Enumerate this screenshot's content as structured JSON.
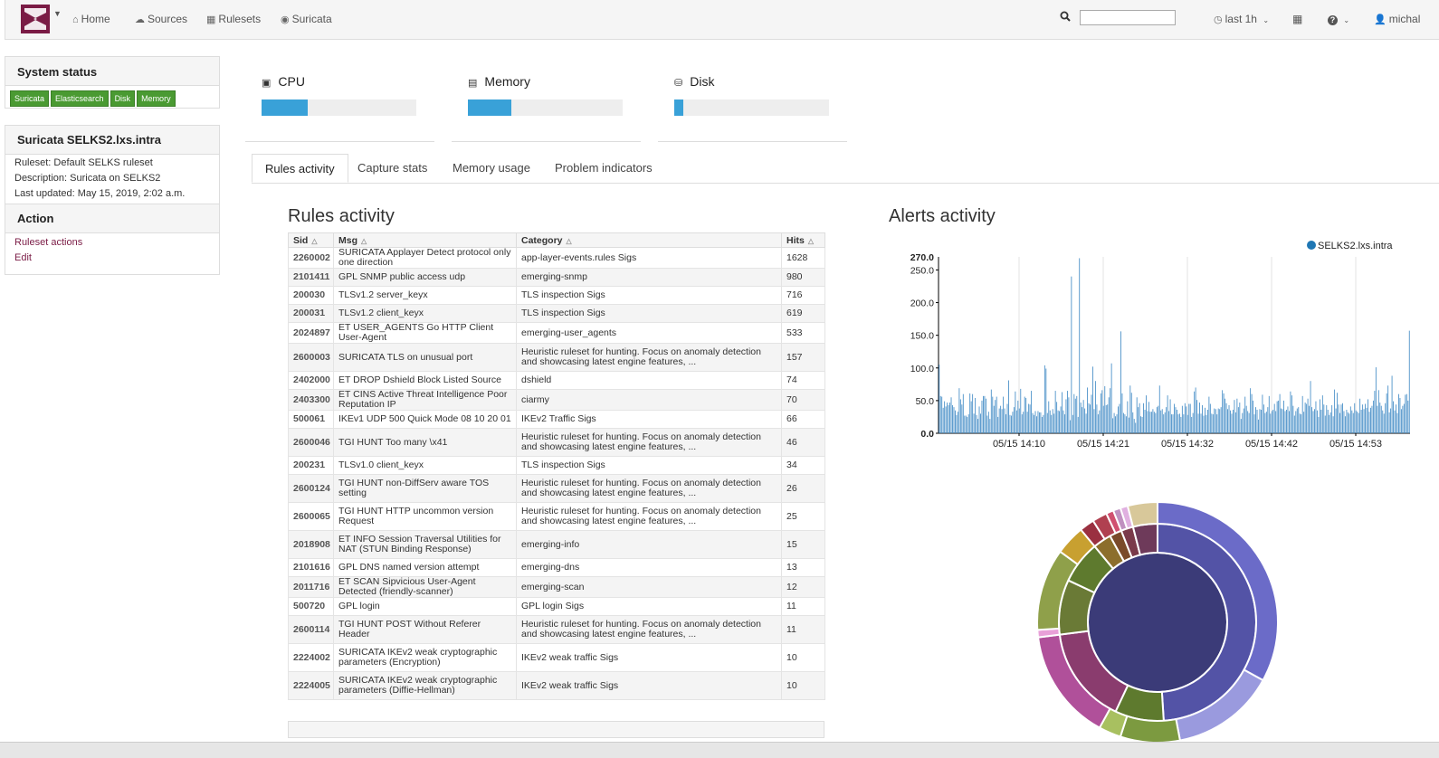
{
  "nav": {
    "home": "Home",
    "sources": "Sources",
    "rulesets": "Rulesets",
    "suricata": "Suricata",
    "time_range": "last 1h",
    "user": "michal"
  },
  "system_status": {
    "title": "System status",
    "badges": [
      "Suricata",
      "Elasticsearch",
      "Disk",
      "Memory"
    ],
    "badge_color": "#4a9a32"
  },
  "probe": {
    "title": "Suricata SELKS2.lxs.intra",
    "ruleset": "Ruleset: Default SELKS ruleset",
    "description": "Description: Suricata on SELKS2",
    "last_updated": "Last updated: May 15, 2019, 2:02 a.m."
  },
  "action": {
    "title": "Action",
    "ruleset_actions": "Ruleset actions",
    "edit": "Edit"
  },
  "gauges": [
    {
      "label": "CPU",
      "icon": "cpu-icon",
      "percent": 30
    },
    {
      "label": "Memory",
      "icon": "memory-icon",
      "percent": 28
    },
    {
      "label": "Disk",
      "icon": "disk-icon",
      "percent": 6
    }
  ],
  "tabs": [
    "Rules activity",
    "Capture stats",
    "Memory usage",
    "Problem indicators"
  ],
  "rules_activity": {
    "title": "Rules activity",
    "columns": [
      "Sid",
      "Msg",
      "Category",
      "Hits"
    ],
    "rows": [
      [
        "2260002",
        "SURICATA Applayer Detect protocol only one direction",
        "app-layer-events.rules Sigs",
        "1628"
      ],
      [
        "2101411",
        "GPL SNMP public access udp",
        "emerging-snmp",
        "980"
      ],
      [
        "200030",
        "TLSv1.2 server_keyx",
        "TLS inspection Sigs",
        "716"
      ],
      [
        "200031",
        "TLSv1.2 client_keyx",
        "TLS inspection Sigs",
        "619"
      ],
      [
        "2024897",
        "ET USER_AGENTS Go HTTP Client User-Agent",
        "emerging-user_agents",
        "533"
      ],
      [
        "2600003",
        "SURICATA TLS on unusual port",
        "Heuristic ruleset for hunting. Focus on anomaly detection and showcasing latest engine features, ...",
        "157"
      ],
      [
        "2402000",
        "ET DROP Dshield Block Listed Source",
        "dshield",
        "74"
      ],
      [
        "2403300",
        "ET CINS Active Threat Intelligence Poor Reputation IP",
        "ciarmy",
        "70"
      ],
      [
        "500061",
        "IKEv1 UDP 500 Quick Mode 08 10 20 01",
        "IKEv2 Traffic Sigs",
        "66"
      ],
      [
        "2600046",
        "TGI HUNT Too many \\x41",
        "Heuristic ruleset for hunting. Focus on anomaly detection and showcasing latest engine features, ...",
        "46"
      ],
      [
        "200231",
        "TLSv1.0 client_keyx",
        "TLS inspection Sigs",
        "34"
      ],
      [
        "2600124",
        "TGI HUNT non-DiffServ aware TOS setting",
        "Heuristic ruleset for hunting. Focus on anomaly detection and showcasing latest engine features, ...",
        "26"
      ],
      [
        "2600065",
        "TGI HUNT HTTP uncommon version Request",
        "Heuristic ruleset for hunting. Focus on anomaly detection and showcasing latest engine features, ...",
        "25"
      ],
      [
        "2018908",
        "ET INFO Session Traversal Utilities for NAT (STUN Binding Response)",
        "emerging-info",
        "15"
      ],
      [
        "2101616",
        "GPL DNS named version attempt",
        "emerging-dns",
        "13"
      ],
      [
        "2011716",
        "ET SCAN Sipvicious User-Agent Detected (friendly-scanner)",
        "emerging-scan",
        "12"
      ],
      [
        "500720",
        "GPL login",
        "GPL login Sigs",
        "11"
      ],
      [
        "2600114",
        "TGI HUNT POST Without Referer Header",
        "Heuristic ruleset for hunting. Focus on anomaly detection and showcasing latest engine features, ...",
        "11"
      ],
      [
        "2224002",
        "SURICATA IKEv2 weak cryptographic parameters (Encryption)",
        "IKEv2 weak traffic Sigs",
        "10"
      ],
      [
        "2224005",
        "SURICATA IKEv2 weak cryptographic parameters (Diffie-Hellman)",
        "IKEv2 weak traffic Sigs",
        "10"
      ]
    ]
  },
  "alerts_activity": {
    "title": "Alerts activity"
  },
  "chart_data": [
    {
      "type": "bar",
      "title": "",
      "series": [
        {
          "name": "SELKS2.lxs.intra",
          "color": "#4a90c8",
          "values": [
            105,
            57,
            56,
            39,
            49,
            41,
            47,
            43,
            47,
            55,
            43,
            40,
            35,
            28,
            33,
            69,
            52,
            44,
            60,
            27,
            27,
            25,
            29,
            61,
            49,
            60,
            30,
            54,
            28,
            22,
            41,
            30,
            50,
            57,
            57,
            53,
            27,
            33,
            22,
            67,
            56,
            42,
            51,
            56,
            25,
            38,
            42,
            37,
            56,
            38,
            29,
            45,
            81,
            28,
            27,
            33,
            40,
            64,
            35,
            50,
            38,
            68,
            29,
            33,
            56,
            54,
            33,
            45,
            44,
            65,
            31,
            28,
            34,
            26,
            34,
            32,
            32,
            25,
            28,
            104,
            99,
            31,
            49,
            35,
            28,
            37,
            30,
            65,
            48,
            35,
            34,
            41,
            63,
            35,
            29,
            52,
            65,
            55,
            20,
            240,
            28,
            60,
            53,
            57,
            25,
            268,
            47,
            40,
            51,
            38,
            30,
            70,
            46,
            44,
            59,
            102,
            37,
            80,
            44,
            29,
            35,
            61,
            66,
            42,
            72,
            43,
            44,
            55,
            69,
            107,
            23,
            31,
            26,
            29,
            41,
            45,
            156,
            61,
            31,
            29,
            26,
            49,
            24,
            73,
            62,
            32,
            22,
            16,
            55,
            40,
            46,
            26,
            25,
            46,
            36,
            58,
            34,
            48,
            33,
            33,
            37,
            33,
            31,
            40,
            42,
            73,
            35,
            37,
            29,
            32,
            40,
            58,
            34,
            52,
            29,
            29,
            45,
            40,
            36,
            29,
            30,
            25,
            42,
            29,
            46,
            41,
            28,
            45,
            45,
            25,
            31,
            64,
            70,
            51,
            30,
            47,
            30,
            43,
            27,
            39,
            28,
            36,
            56,
            45,
            30,
            29,
            38,
            37,
            29,
            38,
            37,
            40,
            66,
            61,
            53,
            46,
            37,
            43,
            35,
            30,
            36,
            51,
            32,
            53,
            40,
            47,
            22,
            31,
            38,
            56,
            42,
            34,
            31,
            69,
            60,
            50,
            29,
            40,
            36,
            21,
            37,
            36,
            59,
            44,
            31,
            33,
            40,
            57,
            30,
            34,
            36,
            45,
            34,
            49,
            50,
            60,
            38,
            37,
            50,
            34,
            36,
            41,
            34,
            64,
            58,
            42,
            27,
            34,
            38,
            40,
            30,
            29,
            57,
            33,
            47,
            45,
            53,
            42,
            80,
            40,
            34,
            37,
            49,
            35,
            25,
            52,
            36,
            58,
            44,
            27,
            43,
            36,
            28,
            32,
            43,
            26,
            67,
            38,
            62,
            44,
            31,
            44,
            46,
            34,
            26,
            36,
            32,
            30,
            41,
            35,
            31,
            46,
            35,
            33,
            31,
            53,
            36,
            44,
            37,
            45,
            39,
            52,
            33,
            39,
            42,
            50,
            65,
            101,
            42,
            66,
            47,
            42,
            35,
            30,
            46,
            61,
            73,
            32,
            38,
            88,
            49,
            35,
            44,
            31,
            60,
            54,
            37,
            42,
            45,
            59,
            60,
            50,
            157
          ]
        }
      ],
      "ylim": [
        0,
        270
      ],
      "y_ticks": [
        "0.0",
        "50.0",
        "100.0",
        "150.0",
        "200.0",
        "250.0",
        "270.0"
      ],
      "x_ticks": [
        "05/15 14:10",
        "05/15 14:21",
        "05/15 14:32",
        "05/15 14:42",
        "05/15 14:53"
      ],
      "legend_position": "top-right",
      "grid": true
    },
    {
      "type": "pie",
      "title": "",
      "rings": [
        {
          "ring": "inner",
          "slices": [
            {
              "value": 100,
              "color": "#3b3b78"
            }
          ]
        },
        {
          "ring": "middle",
          "slices": [
            {
              "value": 49,
              "color": "#5353a6"
            },
            {
              "value": 8,
              "color": "#5e7a2e"
            },
            {
              "value": 16,
              "color": "#8a3c6e"
            },
            {
              "value": 9,
              "color": "#6a7a36"
            },
            {
              "value": 7,
              "color": "#5e7a2e"
            },
            {
              "value": 3,
              "color": "#8c6e2c"
            },
            {
              "value": 2,
              "color": "#7a4a2a"
            },
            {
              "value": 2,
              "color": "#7a3a4a"
            },
            {
              "value": 4,
              "color": "#6e3a5a"
            }
          ]
        },
        {
          "ring": "outer",
          "slices": [
            {
              "value": 33,
              "color": "#6b6bc8"
            },
            {
              "value": 14,
              "color": "#9a9ade"
            },
            {
              "value": 8,
              "color": "#7c9a40"
            },
            {
              "value": 3,
              "color": "#a8c060"
            },
            {
              "value": 15,
              "color": "#b0509a"
            },
            {
              "value": 1,
              "color": "#e8a0d8"
            },
            {
              "value": 11,
              "color": "#8fa04a"
            },
            {
              "value": 4,
              "color": "#c8a030"
            },
            {
              "value": 2,
              "color": "#9a3040"
            },
            {
              "value": 2,
              "color": "#b04050"
            },
            {
              "value": 1,
              "color": "#d05070"
            },
            {
              "value": 1,
              "color": "#c090c0"
            },
            {
              "value": 1,
              "color": "#e0b0e0"
            },
            {
              "value": 4,
              "color": "#d8c89a"
            }
          ]
        }
      ]
    }
  ]
}
